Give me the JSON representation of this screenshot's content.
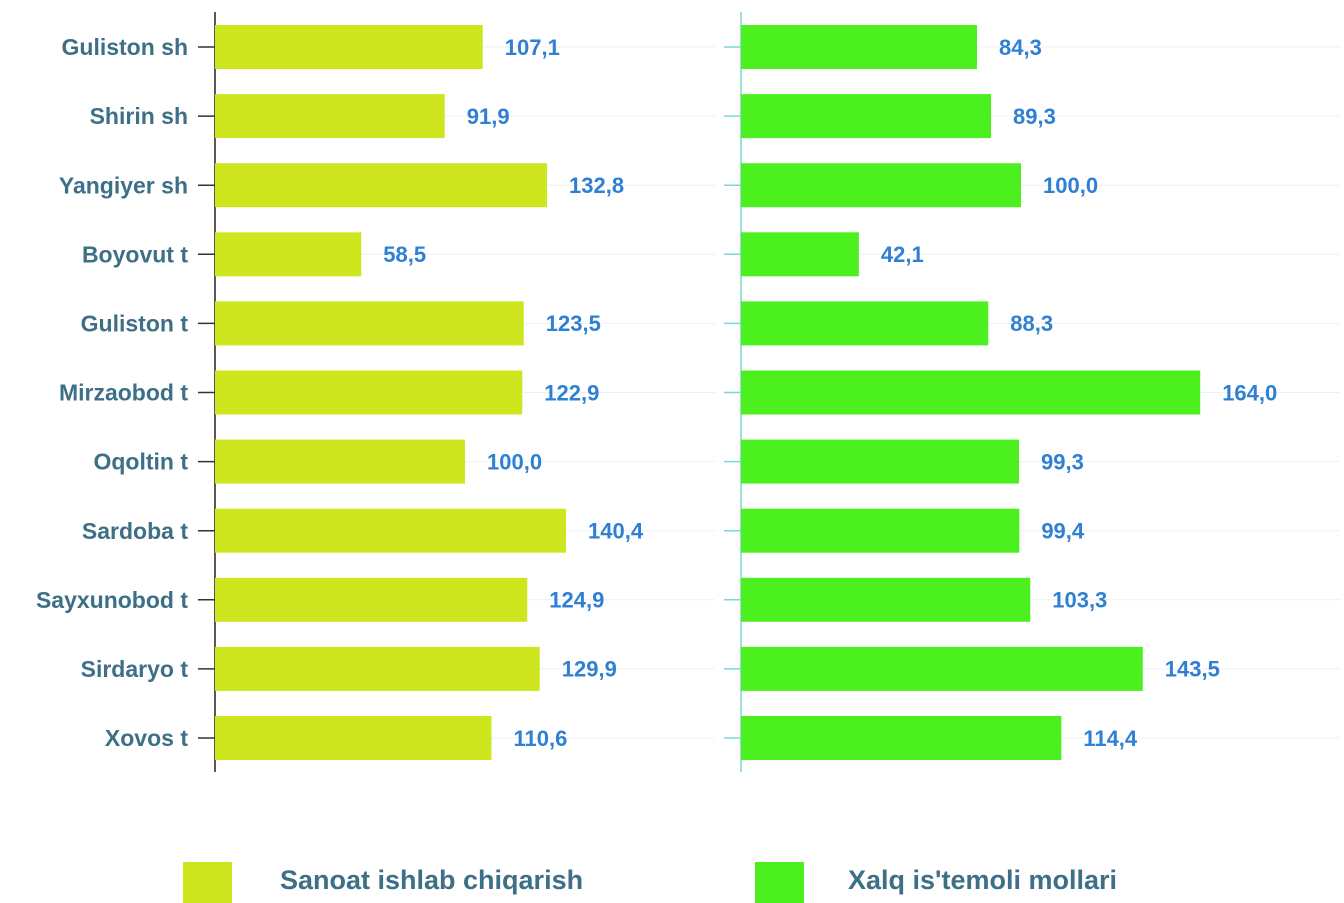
{
  "chart_data": {
    "type": "bar",
    "orientation": "horizontal",
    "categories": [
      "Guliston sh",
      "Shirin sh",
      "Yangiyer sh",
      "Boyovut t",
      "Guliston t",
      "Mirzaobod t",
      "Oqoltin t",
      "Sardoba t",
      "Sayxunobod t",
      "Sirdaryo t",
      "Xovos t"
    ],
    "series": [
      {
        "name": "Sanoat ishlab chiqarish",
        "color": "#cde61e",
        "values": [
          107.1,
          91.9,
          132.8,
          58.5,
          123.5,
          122.9,
          100.0,
          140.4,
          124.9,
          129.9,
          110.6
        ],
        "value_labels": [
          "107,1",
          "91,9",
          "132,8",
          "58,5",
          "123,5",
          "122,9",
          "100,0",
          "140,4",
          "124,9",
          "129,9",
          "110,6"
        ]
      },
      {
        "name": "Xalq is'temoli mollari",
        "color": "#4cf01e",
        "values": [
          84.3,
          89.3,
          100.0,
          42.1,
          88.3,
          164.0,
          99.3,
          99.4,
          103.3,
          143.5,
          114.4
        ],
        "value_labels": [
          "84,3",
          "89,3",
          "100,0",
          "42,1",
          "88,3",
          "164,0",
          "99,3",
          "99,4",
          "103,3",
          "143,5",
          "114,4"
        ]
      }
    ],
    "xlim": [
      0,
      200
    ],
    "grid": true,
    "legend": "bottom"
  }
}
